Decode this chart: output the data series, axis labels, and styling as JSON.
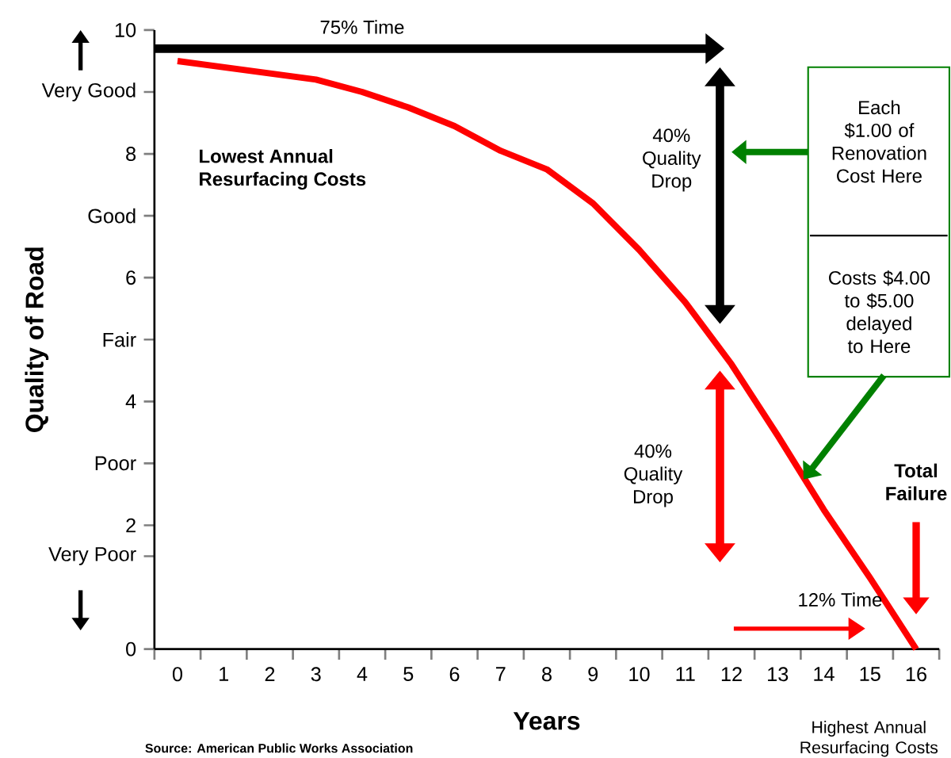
{
  "chart_data": {
    "type": "line",
    "xlabel": "Years",
    "ylabel": "Quality of Road",
    "categories": [
      "0",
      "1",
      "2",
      "3",
      "4",
      "5",
      "6",
      "7",
      "8",
      "9",
      "10",
      "11",
      "12",
      "13",
      "14",
      "15",
      "16"
    ],
    "values": [
      9.5,
      9.4,
      9.3,
      9.2,
      9.0,
      8.75,
      8.45,
      8.05,
      7.75,
      7.2,
      6.45,
      5.6,
      4.6,
      3.45,
      2.25,
      1.15,
      0
    ],
    "color": "#ff0000",
    "ylim": [
      0,
      10
    ],
    "yticks": [
      0,
      {
        "value": 1.5,
        "label": "Very Poor"
      },
      2,
      {
        "value": 3,
        "label": "Poor"
      },
      4,
      {
        "value": 5,
        "label": "Fair"
      },
      6,
      {
        "value": 7,
        "label": "Good"
      },
      8,
      {
        "value": 9,
        "label": "Very Good"
      },
      10
    ],
    "grid": false,
    "marker": "none",
    "line_style": "solid",
    "annotations": [
      "75% Time",
      "Lowest Annual Resurfacing Costs",
      "40% Quality Drop",
      "Each $1.00 of Renovation Cost Here",
      "Costs $4.00 to $5.00 delayed to Here",
      "40% Quality Drop",
      "12% Time",
      "Total Failure",
      "Highest Annual Resurfacing Costs",
      "Source: American Public Works Association"
    ]
  }
}
